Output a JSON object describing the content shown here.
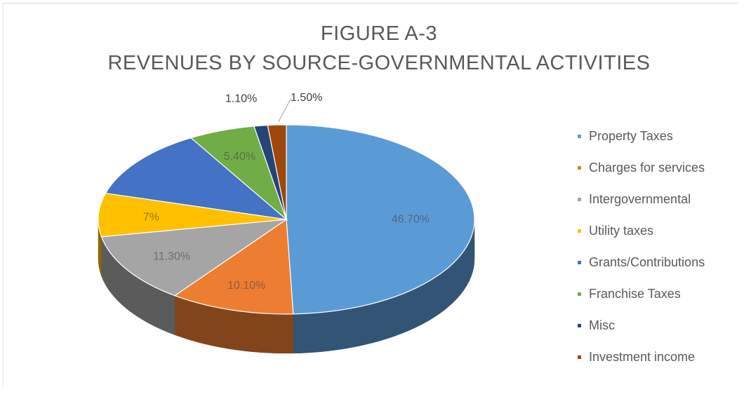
{
  "chart_data": {
    "type": "pie",
    "title": "FIGURE A-3",
    "subtitle": "REVENUES BY SOURCE-GOVERNMENTAL ACTIVITIES",
    "legend_position": "right",
    "slices": [
      {
        "name": "Property Taxes",
        "value": 46.7,
        "label": "46.70%",
        "color": "#5b9bd5"
      },
      {
        "name": "Charges for services",
        "value": 10.1,
        "label": "10.10%",
        "color": "#ed7d31"
      },
      {
        "name": "Intergovernmental",
        "value": 11.3,
        "label": "11.30%",
        "color": "#a5a5a5"
      },
      {
        "name": "Utility taxes",
        "value": 7,
        "label": "7%",
        "color": "#ffc000"
      },
      {
        "name": "Grants/Contributions",
        "value": 11.4,
        "label": "",
        "color": "#4472c4"
      },
      {
        "name": "Franchise Taxes",
        "value": 5.4,
        "label": "5.40%",
        "color": "#70ad47"
      },
      {
        "name": "Misc",
        "value": 1.1,
        "label": "1.10%",
        "color": "#264478"
      },
      {
        "name": "Investment income",
        "value": 1.5,
        "label": "1.50%",
        "color": "#9e480e"
      }
    ]
  }
}
